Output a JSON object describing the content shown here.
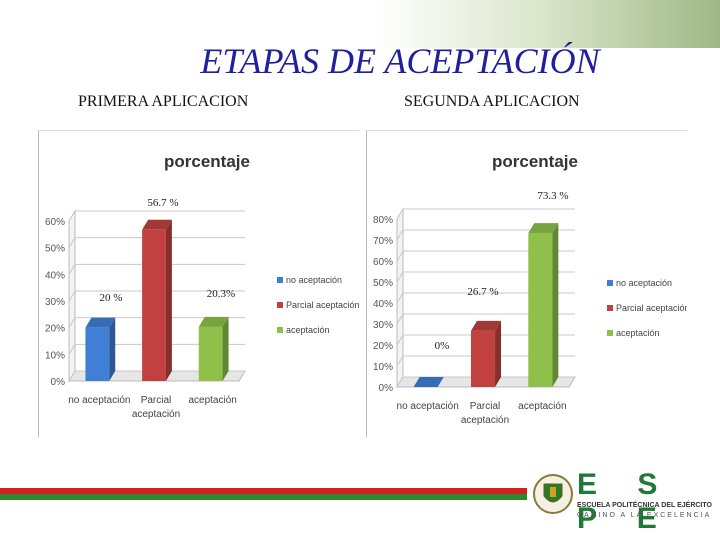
{
  "slide": {
    "title": "ETAPAS DE ACEPTACIÓN",
    "left_subtitle": "PRIMERA APLICACION",
    "right_subtitle": "SEGUNDA APLICACION"
  },
  "logo": {
    "letters": "E S P E",
    "institution": "ESCUELA POLITÉCNICA DEL EJÉRCITO",
    "motto": "CAMINO A LA EXCELENCIA"
  },
  "colors": {
    "title": "#1f1fa0",
    "series_blue": "#3f7fd6",
    "series_red": "#c0413f",
    "series_green": "#8ec04a",
    "footer_red": "#d42020",
    "footer_green": "#2a8a2a"
  },
  "chart_data": [
    {
      "type": "bar",
      "title": "porcentaje",
      "categories": [
        "no aceptación",
        "Parcial aceptación",
        "aceptación"
      ],
      "values": [
        0.2,
        0.567,
        0.203
      ],
      "data_labels": [
        "20 %",
        "56.7 %",
        "20.3%"
      ],
      "legend": [
        "no aceptación",
        "Parcial aceptación",
        "aceptación"
      ],
      "legend_position": "right",
      "y_ticks": [
        "0%",
        "10%",
        "20%",
        "30%",
        "40%",
        "50%",
        "60%"
      ],
      "ylim": [
        0,
        0.6
      ],
      "grid": true
    },
    {
      "type": "bar",
      "title": "porcentaje",
      "categories": [
        "no aceptación",
        "Parcial aceptación",
        "aceptación"
      ],
      "values": [
        0.0,
        0.267,
        0.733
      ],
      "data_labels": [
        "0%",
        "26.7 %",
        "73.3 %"
      ],
      "legend": [
        "no aceptación",
        "Parcial aceptación",
        "aceptación"
      ],
      "legend_position": "right",
      "y_ticks": [
        "0%",
        "10%",
        "20%",
        "30%",
        "40%",
        "50%",
        "60%",
        "70%",
        "80%"
      ],
      "ylim": [
        0,
        0.8
      ],
      "grid": true
    }
  ]
}
